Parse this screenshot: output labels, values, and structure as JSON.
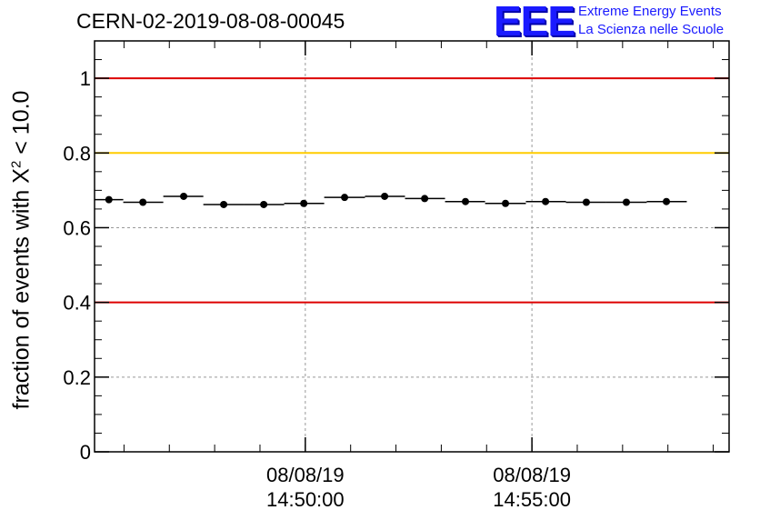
{
  "page_title": "CERN-02-2019-08-08-00045",
  "logo": {
    "mark": "EEE",
    "line1": "Extreme Energy Events",
    "line2": "La Scienza nelle Scuole"
  },
  "chart_data": {
    "type": "scatter",
    "title": "CERN-02-2019-08-08-00045",
    "ylabel_pre": "fraction of events with X",
    "ylabel_sup": "2",
    "ylabel_post": " < 10.0",
    "ylim": [
      0,
      1.1
    ],
    "xlim": [
      "14:45:21",
      "14:59:21"
    ],
    "x_ticks": [
      {
        "time": "14:50:00",
        "line1": "08/08/19",
        "line2": "14:50:00"
      },
      {
        "time": "14:55:00",
        "line1": "08/08/19",
        "line2": "14:55:00"
      }
    ],
    "y_ticks": [
      {
        "value": 0,
        "label": "0"
      },
      {
        "value": 0.2,
        "label": "0.2"
      },
      {
        "value": 0.4,
        "label": "0.4"
      },
      {
        "value": 0.6,
        "label": "0.6"
      },
      {
        "value": 0.8,
        "label": "0.8"
      },
      {
        "value": 1,
        "label": "1"
      }
    ],
    "grid": true,
    "reference_lines": [
      {
        "y": 1.0,
        "color": "#dd0000"
      },
      {
        "y": 0.8,
        "color": "#ffcc00"
      },
      {
        "y": 0.4,
        "color": "#dd0000"
      }
    ],
    "points": [
      {
        "x": "14:45:40",
        "y": 0.675,
        "bin_start": "14:45:21",
        "bin_end": "14:45:59"
      },
      {
        "x": "14:46:25",
        "y": 0.668,
        "bin_start": "14:45:59",
        "bin_end": "14:46:52"
      },
      {
        "x": "14:47:19",
        "y": 0.684,
        "bin_start": "14:46:52",
        "bin_end": "14:47:45"
      },
      {
        "x": "14:48:12",
        "y": 0.662,
        "bin_start": "14:47:45",
        "bin_end": "14:48:39"
      },
      {
        "x": "14:49:05",
        "y": 0.662,
        "bin_start": "14:48:39",
        "bin_end": "14:49:32"
      },
      {
        "x": "14:49:58",
        "y": 0.665,
        "bin_start": "14:49:32",
        "bin_end": "14:50:25"
      },
      {
        "x": "14:50:52",
        "y": 0.681,
        "bin_start": "14:50:25",
        "bin_end": "14:51:19"
      },
      {
        "x": "14:51:45",
        "y": 0.684,
        "bin_start": "14:51:19",
        "bin_end": "14:52:12"
      },
      {
        "x": "14:52:38",
        "y": 0.678,
        "bin_start": "14:52:12",
        "bin_end": "14:53:05"
      },
      {
        "x": "14:53:32",
        "y": 0.67,
        "bin_start": "14:53:05",
        "bin_end": "14:53:58"
      },
      {
        "x": "14:54:25",
        "y": 0.665,
        "bin_start": "14:53:58",
        "bin_end": "14:54:52"
      },
      {
        "x": "14:55:18",
        "y": 0.67,
        "bin_start": "14:54:52",
        "bin_end": "14:55:45"
      },
      {
        "x": "14:56:12",
        "y": 0.668,
        "bin_start": "14:55:45",
        "bin_end": "14:56:38"
      },
      {
        "x": "14:57:05",
        "y": 0.668,
        "bin_start": "14:56:38",
        "bin_end": "14:57:32"
      },
      {
        "x": "14:57:58",
        "y": 0.67,
        "bin_start": "14:57:32",
        "bin_end": "14:58:25"
      }
    ]
  }
}
